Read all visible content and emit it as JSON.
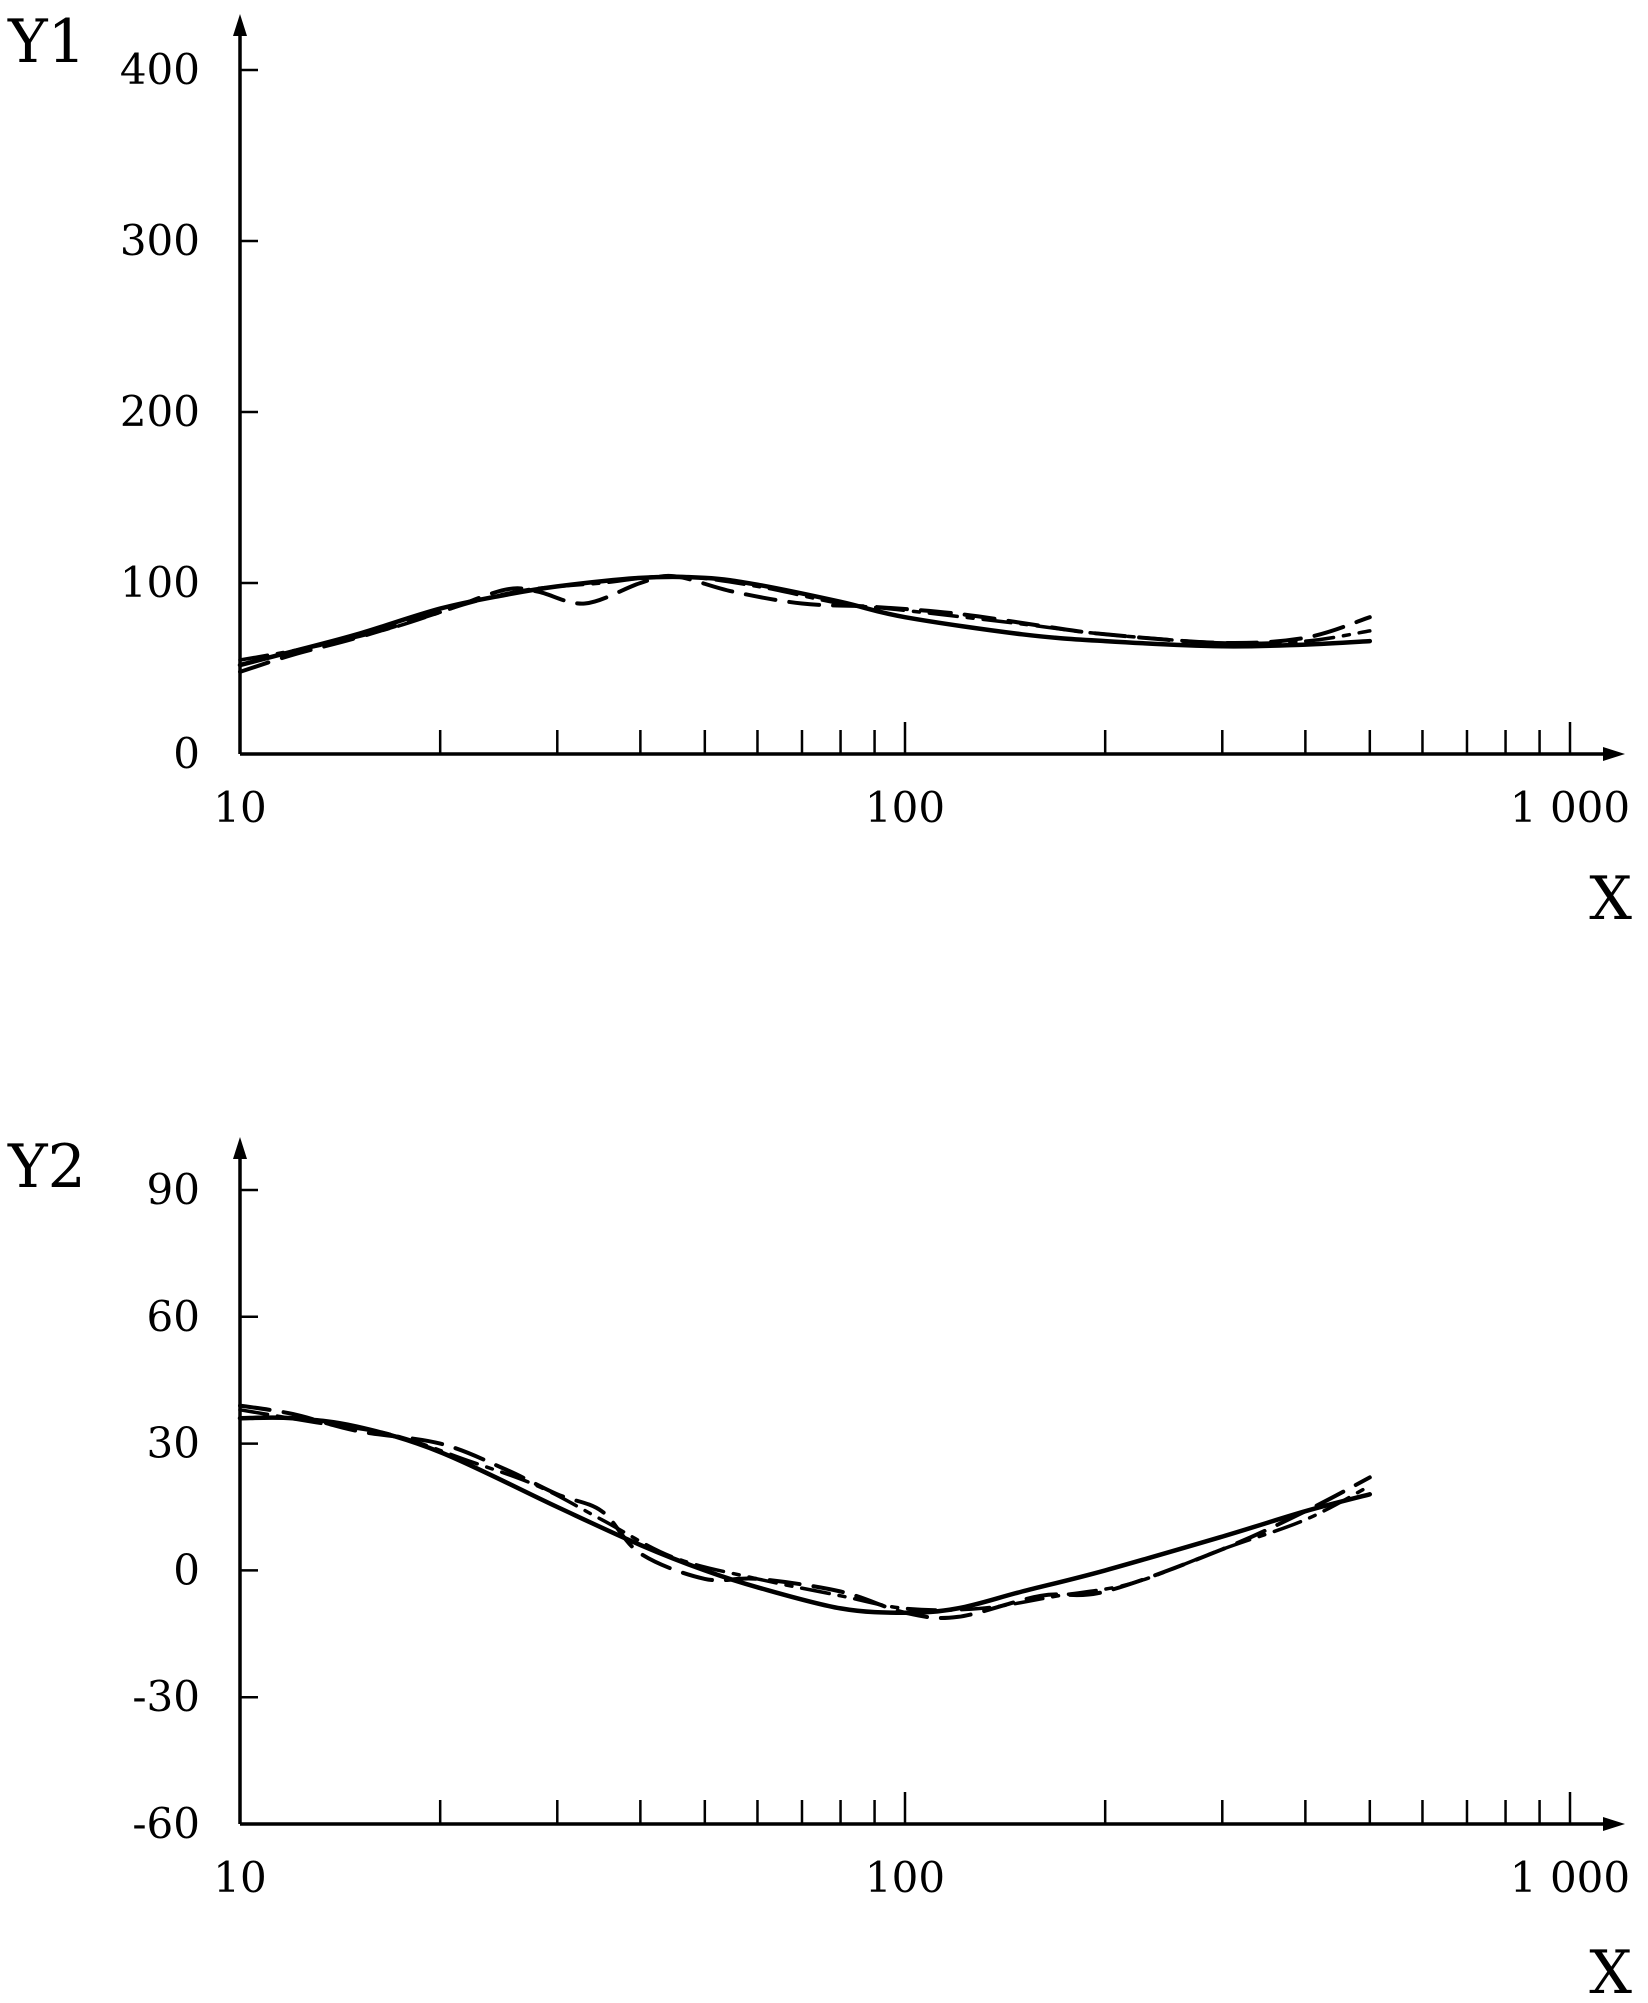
{
  "chart_data": [
    {
      "type": "line",
      "ylabel": "Y1",
      "xlabel": "X",
      "x_scale": "log",
      "xlim": [
        10,
        1000
      ],
      "ylim": [
        0,
        400
      ],
      "x_tick_labels": [
        "10",
        "100",
        "1 000"
      ],
      "y_tick_labels": [
        "0",
        "100",
        "200",
        "300",
        "400"
      ],
      "series": [
        {
          "style": "solid",
          "x": [
            10,
            12,
            15,
            20,
            25,
            30,
            40,
            50,
            60,
            80,
            100,
            150,
            200,
            300,
            400,
            500
          ],
          "y": [
            52,
            60,
            70,
            85,
            93,
            98,
            103,
            103,
            99,
            89,
            80,
            70,
            66,
            63,
            64,
            66
          ]
        },
        {
          "style": "long-dash",
          "x": [
            10,
            12,
            15,
            20,
            25,
            28,
            33,
            40,
            45,
            55,
            70,
            90,
            120,
            160,
            200,
            300,
            400,
            500
          ],
          "y": [
            48,
            58,
            68,
            83,
            96,
            95,
            88,
            100,
            104,
            95,
            88,
            86,
            82,
            75,
            70,
            65,
            68,
            80
          ]
        },
        {
          "style": "dash-dot",
          "x": [
            10,
            13,
            17,
            22,
            27,
            35,
            45,
            60,
            80,
            100,
            150,
            200,
            300,
            400,
            500
          ],
          "y": [
            55,
            63,
            74,
            88,
            96,
            100,
            104,
            98,
            88,
            84,
            76,
            70,
            65,
            66,
            72
          ]
        }
      ]
    },
    {
      "type": "line",
      "ylabel": "Y2",
      "xlabel": "X",
      "x_scale": "log",
      "xlim": [
        10,
        1000
      ],
      "ylim": [
        -60,
        90
      ],
      "x_tick_labels": [
        "10",
        "100",
        "1 000"
      ],
      "y_tick_labels": [
        "-60",
        "-30",
        "0",
        "30",
        "60",
        "90"
      ],
      "series": [
        {
          "style": "solid",
          "x": [
            10,
            12,
            15,
            20,
            30,
            40,
            50,
            60,
            80,
            100,
            120,
            150,
            200,
            300,
            400,
            500
          ],
          "y": [
            36,
            36,
            34,
            28,
            15,
            6,
            0,
            -4,
            -9,
            -10,
            -9,
            -5,
            0,
            8,
            14,
            18
          ]
        },
        {
          "style": "long-dash",
          "x": [
            10,
            12,
            15,
            20,
            25,
            30,
            35,
            40,
            50,
            60,
            80,
            100,
            120,
            160,
            200,
            300,
            400,
            500
          ],
          "y": [
            39,
            37,
            33,
            30,
            24,
            18,
            14,
            4,
            -2,
            -2,
            -5,
            -10,
            -11,
            -6,
            -5,
            5,
            14,
            22
          ]
        },
        {
          "style": "dash-dot",
          "x": [
            10,
            13,
            17,
            22,
            28,
            35,
            45,
            60,
            80,
            100,
            130,
            170,
            220,
            300,
            400,
            500
          ],
          "y": [
            38,
            35,
            32,
            26,
            20,
            12,
            3,
            -2,
            -6,
            -9,
            -9,
            -6,
            -3,
            5,
            12,
            20
          ]
        }
      ]
    }
  ]
}
